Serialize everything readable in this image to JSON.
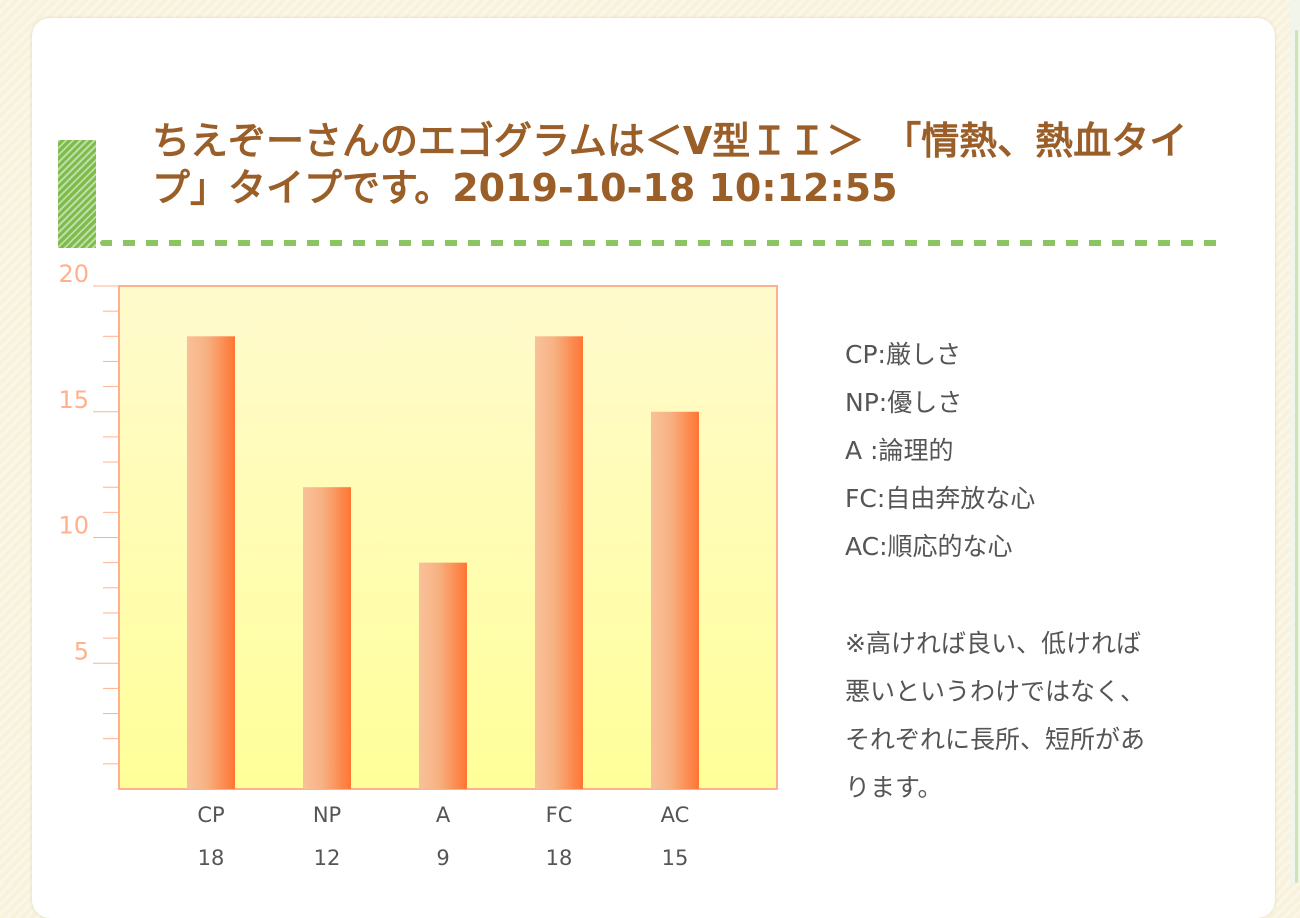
{
  "title": "ちえぞーさんのエゴグラムは＜V型ＩＩ＞　「情熱、熱血タイプ」タイプです。2019-10-18 10:12:55",
  "legend": [
    "CP:厳しさ",
    "NP:優しさ",
    "A :論理的",
    "FC:自由奔放な心",
    "AC:順応的な心"
  ],
  "note": "※高ければ良い、低ければ悪いというわけではなく、それぞれに長所、短所があります。",
  "colors": {
    "title": "#9a5e28",
    "bar_light": "#f9c199",
    "bar_dark": "#ff7433",
    "plot_top": "#fffacd",
    "plot_bottom": "#ffff99",
    "axis": "#ffb18d"
  },
  "chart_data": {
    "type": "bar",
    "categories": [
      "CP",
      "NP",
      "A",
      "FC",
      "AC"
    ],
    "values": [
      18,
      12,
      9,
      18,
      15
    ],
    "value_labels": [
      "18",
      "12",
      "9",
      "18",
      "15"
    ],
    "ylim": [
      0,
      20
    ],
    "yticks": [
      5,
      10,
      15,
      20
    ],
    "ytick_labels": [
      "5",
      "10",
      "15",
      "20"
    ],
    "minor_step": 1,
    "grid": false
  }
}
